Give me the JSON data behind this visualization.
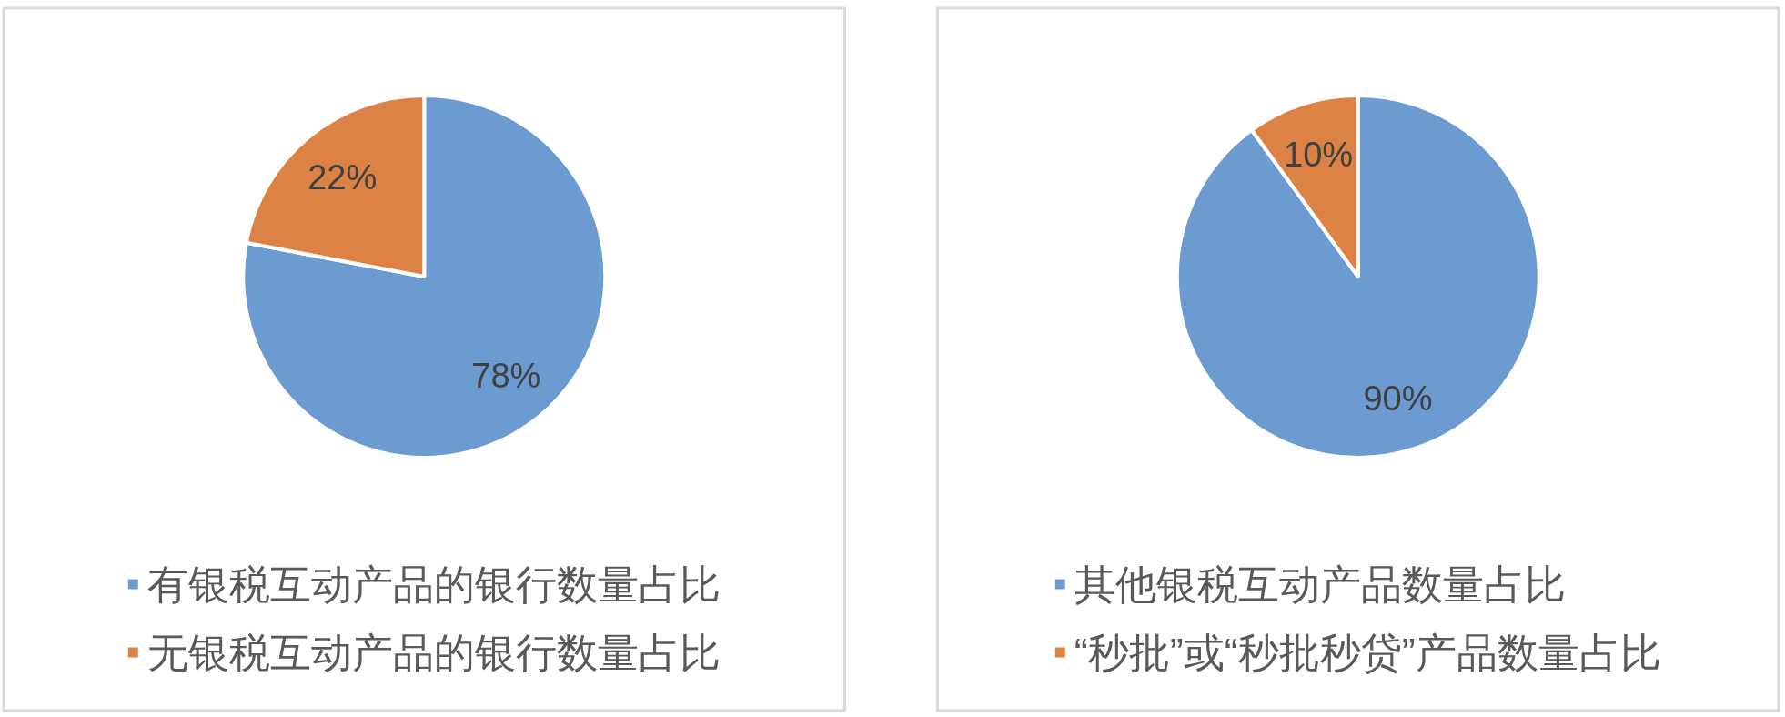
{
  "chart_data": [
    {
      "type": "pie",
      "categories": [
        "有银税互动产品的银行数量占比",
        "无银税互动产品的银行数量占比"
      ],
      "values": [
        78,
        22
      ],
      "colors": [
        "#6b9bd1",
        "#dc8244"
      ],
      "value_labels": [
        "78%",
        "22%"
      ],
      "legend": "bottom"
    },
    {
      "type": "pie",
      "categories": [
        "其他银税互动产品数量占比",
        "“秒批”或“秒批秒贷”产品数量占比"
      ],
      "values": [
        90,
        10
      ],
      "colors": [
        "#6b9bd1",
        "#dc8244"
      ],
      "value_labels": [
        "90%",
        "10%"
      ],
      "legend": "bottom"
    }
  ]
}
